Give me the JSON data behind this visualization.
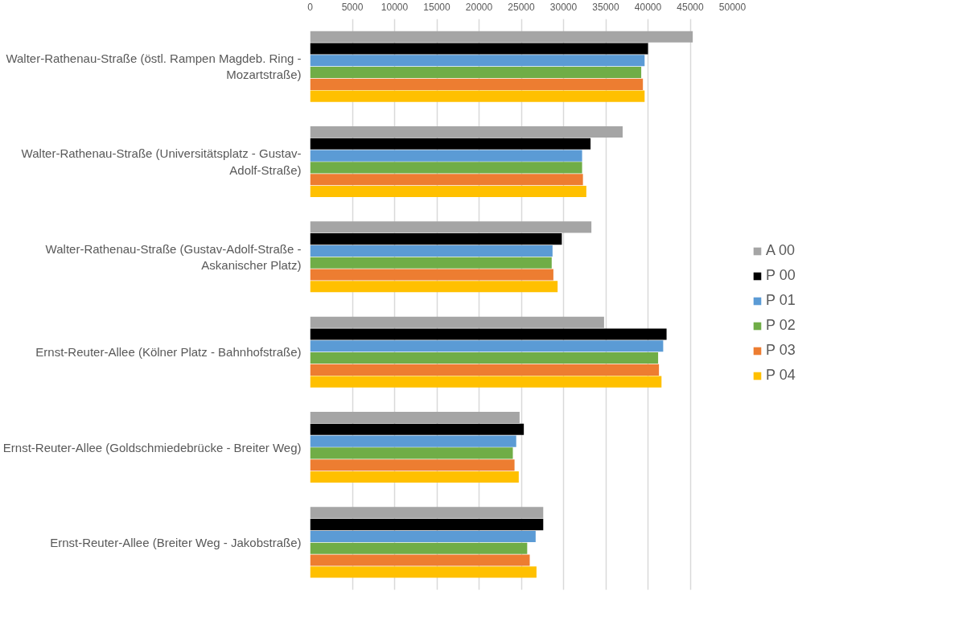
{
  "chart_data": {
    "type": "bar",
    "orientation": "horizontal",
    "categories": [
      "Walter-Rathenau-Straße (östl. Rampen Magdeb. Ring - Mozartstraße)",
      "Walter-Rathenau-Straße (Universitätsplatz - Gustav-Adolf-Straße)",
      "Walter-Rathenau-Straße (Gustav-Adolf-Straße - Askanischer Platz)",
      "Ernst-Reuter-Allee (Kölner Platz - Bahnhofstraße)",
      "Ernst-Reuter-Allee (Goldschmiedebrücke - Breiter Weg)",
      "Ernst-Reuter-Allee (Breiter Weg - Jakobstraße)"
    ],
    "series": [
      {
        "name": "A 00",
        "color": "#a5a5a5",
        "values": [
          45300,
          37000,
          33300,
          34800,
          24800,
          27600
        ]
      },
      {
        "name": "P 00",
        "color": "#000000",
        "values": [
          40000,
          33200,
          29800,
          42200,
          25300,
          27600
        ]
      },
      {
        "name": "P 01",
        "color": "#5b9bd5",
        "values": [
          39600,
          32200,
          28700,
          41800,
          24400,
          26700
        ]
      },
      {
        "name": "P 02",
        "color": "#70ad47",
        "values": [
          39200,
          32200,
          28600,
          41200,
          24000,
          25700
        ]
      },
      {
        "name": "P 03",
        "color": "#ed7d31",
        "values": [
          39400,
          32300,
          28800,
          41300,
          24200,
          26000
        ]
      },
      {
        "name": "P 04",
        "color": "#ffc000",
        "values": [
          39600,
          32700,
          29300,
          41600,
          24700,
          26800
        ]
      }
    ],
    "xlim": [
      0,
      50000
    ],
    "xticks": [
      0,
      5000,
      10000,
      15000,
      20000,
      25000,
      30000,
      35000,
      40000,
      45000,
      50000
    ],
    "grid": "x",
    "legend": "right"
  }
}
